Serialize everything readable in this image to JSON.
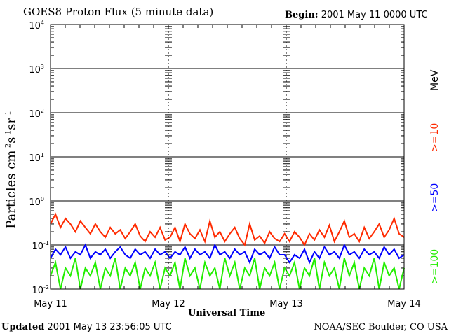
{
  "header": {
    "title": "GOES8 Proton Flux (5 minute data)",
    "begin_label": "Begin:",
    "begin_value": "2001 May 11 0000 UTC"
  },
  "footer": {
    "updated_label": "Updated",
    "updated_value": "2001 May 13 23:56:05 UTC",
    "credit": "NOAA/SEC Boulder, CO USA"
  },
  "chart_data": {
    "type": "line",
    "title": "GOES8 Proton Flux (5 minute data)",
    "xlabel": "Universal Time",
    "ylabel": "Particles cm-2s-1sr-1",
    "yscale": "log",
    "ylim": [
      0.01,
      10000
    ],
    "xlim_hours": [
      0,
      72
    ],
    "x_ticks": [
      "May 11",
      "May 12",
      "May 13",
      "May 14"
    ],
    "y_ticks": [
      {
        "base": "10",
        "exp": "4"
      },
      {
        "base": "10",
        "exp": "3"
      },
      {
        "base": "10",
        "exp": "2"
      },
      {
        "base": "10",
        "exp": "1"
      },
      {
        "base": "10",
        "exp": "0"
      },
      {
        "base": "10",
        "exp": "-1"
      },
      {
        "base": "10",
        "exp": "-2"
      }
    ],
    "units_label": "MeV",
    "series": [
      {
        "name": ">=10",
        "color": "#ff2a00",
        "values": [
          0.3,
          0.5,
          0.25,
          0.4,
          0.3,
          0.2,
          0.35,
          0.25,
          0.18,
          0.3,
          0.2,
          0.15,
          0.25,
          0.18,
          0.22,
          0.14,
          0.2,
          0.3,
          0.16,
          0.12,
          0.2,
          0.15,
          0.25,
          0.13,
          0.15,
          0.25,
          0.12,
          0.3,
          0.18,
          0.14,
          0.22,
          0.12,
          0.35,
          0.15,
          0.2,
          0.12,
          0.18,
          0.25,
          0.14,
          0.1,
          0.3,
          0.13,
          0.16,
          0.11,
          0.2,
          0.14,
          0.12,
          0.18,
          0.12,
          0.2,
          0.15,
          0.1,
          0.18,
          0.13,
          0.22,
          0.15,
          0.28,
          0.12,
          0.2,
          0.35,
          0.15,
          0.18,
          0.12,
          0.25,
          0.14,
          0.2,
          0.3,
          0.15,
          0.22,
          0.4,
          0.18,
          0.15
        ]
      },
      {
        "name": ">=50",
        "color": "#0000ff",
        "values": [
          0.05,
          0.08,
          0.06,
          0.09,
          0.05,
          0.07,
          0.06,
          0.1,
          0.05,
          0.07,
          0.06,
          0.08,
          0.05,
          0.07,
          0.09,
          0.06,
          0.05,
          0.08,
          0.06,
          0.07,
          0.05,
          0.08,
          0.06,
          0.07,
          0.05,
          0.07,
          0.06,
          0.09,
          0.05,
          0.08,
          0.06,
          0.07,
          0.05,
          0.1,
          0.06,
          0.07,
          0.05,
          0.08,
          0.06,
          0.07,
          0.04,
          0.08,
          0.06,
          0.07,
          0.05,
          0.09,
          0.06,
          0.06,
          0.04,
          0.06,
          0.05,
          0.08,
          0.04,
          0.07,
          0.05,
          0.09,
          0.06,
          0.07,
          0.05,
          0.1,
          0.06,
          0.07,
          0.05,
          0.08,
          0.06,
          0.07,
          0.05,
          0.09,
          0.06,
          0.08,
          0.05,
          0.06
        ]
      },
      {
        "name": ">=100",
        "color": "#22ee00",
        "values": [
          0.02,
          0.04,
          0.01,
          0.03,
          0.02,
          0.05,
          0.01,
          0.03,
          0.02,
          0.04,
          0.01,
          0.03,
          0.02,
          0.05,
          0.01,
          0.03,
          0.02,
          0.04,
          0.01,
          0.03,
          0.02,
          0.04,
          0.01,
          0.03,
          0.02,
          0.04,
          0.01,
          0.05,
          0.02,
          0.03,
          0.01,
          0.04,
          0.02,
          0.03,
          0.01,
          0.05,
          0.02,
          0.04,
          0.01,
          0.03,
          0.02,
          0.05,
          0.01,
          0.03,
          0.02,
          0.04,
          0.01,
          0.03,
          0.02,
          0.04,
          0.01,
          0.03,
          0.02,
          0.05,
          0.01,
          0.04,
          0.02,
          0.03,
          0.01,
          0.05,
          0.02,
          0.04,
          0.01,
          0.03,
          0.02,
          0.05,
          0.01,
          0.04,
          0.02,
          0.03,
          0.01,
          0.03
        ]
      }
    ]
  }
}
